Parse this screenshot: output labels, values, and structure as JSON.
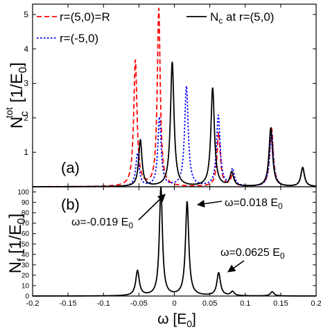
{
  "chart_data": [
    {
      "panel_label": "(a)",
      "type": "line",
      "xlim": [
        -0.2,
        0.2
      ],
      "ylim": [
        0,
        5.3
      ],
      "yticks": [
        0,
        1,
        2,
        3,
        4,
        5
      ],
      "ylabel": {
        "main": "N",
        "sub": "c",
        "sup": "tot",
        "unit": "[1/E",
        "unit_sub": "0",
        "unit_end": "]"
      },
      "legend_placement": "top",
      "series": [
        {
          "name": "r=(5,0)=R",
          "color": "#ff0000",
          "dash": "dashed",
          "peaks": [
            {
              "x": -0.055,
              "y": 3.65,
              "w": 0.0028
            },
            {
              "x": -0.022,
              "y": 5.15,
              "w": 0.0025
            },
            {
              "x": 0.0625,
              "y": 1.55,
              "w": 0.0028
            },
            {
              "x": 0.082,
              "y": 0.32,
              "w": 0.003
            },
            {
              "x": 0.137,
              "y": 1.7,
              "w": 0.003
            },
            {
              "x": 0.181,
              "y": 0.55,
              "w": 0.003
            }
          ]
        },
        {
          "name": "r=(-5,0)",
          "color": "#0000ff",
          "dash": "dotted",
          "peaks": [
            {
              "x": -0.052,
              "y": 0.95,
              "w": 0.0028
            },
            {
              "x": -0.021,
              "y": 2.0,
              "w": 0.0028
            },
            {
              "x": 0.017,
              "y": 2.9,
              "w": 0.003
            },
            {
              "x": 0.062,
              "y": 2.05,
              "w": 0.003
            },
            {
              "x": 0.082,
              "y": 0.48,
              "w": 0.003
            },
            {
              "x": 0.137,
              "y": 1.6,
              "w": 0.003
            },
            {
              "x": 0.181,
              "y": 0.55,
              "w": 0.003
            }
          ]
        },
        {
          "name": "N",
          "name_sub": "c",
          "name_rest": " at r=(5,0)",
          "color": "#000000",
          "dash": "solid",
          "peaks": [
            {
              "x": -0.048,
              "y": 1.35,
              "w": 0.0028
            },
            {
              "x": -0.003,
              "y": 3.6,
              "w": 0.003
            },
            {
              "x": 0.054,
              "y": 2.85,
              "w": 0.003
            },
            {
              "x": 0.081,
              "y": 0.4,
              "w": 0.003
            },
            {
              "x": 0.136,
              "y": 1.7,
              "w": 0.003
            },
            {
              "x": 0.181,
              "y": 0.55,
              "w": 0.003
            }
          ]
        }
      ]
    },
    {
      "panel_label": "(b)",
      "type": "line",
      "xlim": [
        -0.2,
        0.2
      ],
      "ylim": [
        0,
        105
      ],
      "xticks": [
        -0.2,
        -0.15,
        -0.1,
        -0.05,
        0,
        0.05,
        0.1,
        0.15,
        0.2
      ],
      "xtick_labels": [
        "-0.2",
        "-0.15",
        "-0.1",
        "-0.05",
        "0",
        "0.05",
        "0.1",
        "0.15",
        "0.2"
      ],
      "yticks": [
        0,
        10,
        20,
        30,
        40,
        50,
        60,
        70,
        80,
        90,
        100
      ],
      "xlabel": {
        "main": "ω",
        "unit": "[E",
        "unit_sub": "0",
        "unit_end": "]"
      },
      "ylabel": {
        "main": "N",
        "sub": "f",
        "unit": "[1/E",
        "unit_sub": "0",
        "unit_end": "]"
      },
      "series": [
        {
          "name": "",
          "color": "#000000",
          "dash": "solid",
          "peaks": [
            {
              "x": -0.052,
              "y": 24,
              "w": 0.003
            },
            {
              "x": -0.019,
              "y": 104,
              "w": 0.0026
            },
            {
              "x": 0.018,
              "y": 90,
              "w": 0.0028
            },
            {
              "x": 0.0625,
              "y": 22,
              "w": 0.003
            },
            {
              "x": 0.082,
              "y": 4,
              "w": 0.003
            },
            {
              "x": 0.138,
              "y": 4,
              "w": 0.003
            }
          ]
        }
      ],
      "annotations": [
        {
          "prefix": "ω=",
          "value": "-0.019",
          "unit": " E",
          "unit_sub": "0",
          "target_x": -0.019,
          "target_y": 104
        },
        {
          "prefix": "ω=",
          "value": "0.018",
          "unit": " E",
          "unit_sub": "0",
          "target_x": 0.018,
          "target_y": 90
        },
        {
          "prefix": "ω=",
          "value": "0.0625",
          "unit": " E",
          "unit_sub": "0",
          "target_x": 0.0625,
          "target_y": 22
        }
      ]
    }
  ]
}
